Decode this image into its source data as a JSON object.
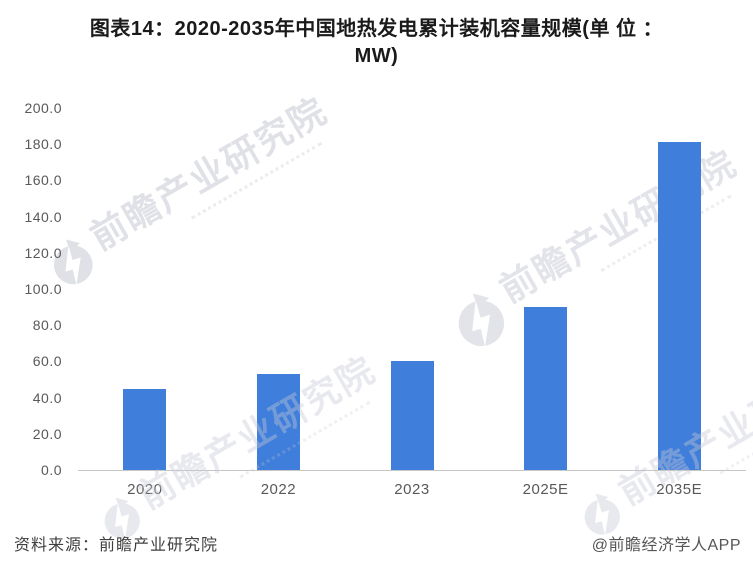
{
  "title": {
    "line1": "图表14：2020-2035年中国地热发电累计装机容量规模(单 位 ：",
    "line2": "MW)"
  },
  "chart_data": {
    "type": "bar",
    "title": "图表14：2020-2035年中国地热发电累计装机容量规模(单位：MW)",
    "categories": [
      "2020",
      "2022",
      "2023",
      "2025E",
      "2035E"
    ],
    "values": [
      45,
      53,
      60,
      90,
      181
    ],
    "unit": "MW",
    "xlabel": "",
    "ylabel": "",
    "ylim": [
      0,
      200
    ],
    "ytick_step": 20,
    "ytick_labels": [
      "200.0",
      "180.0",
      "160.0",
      "140.0",
      "120.0",
      "100.0",
      "80.0",
      "60.0",
      "40.0",
      "20.0",
      "0.0"
    ],
    "bar_color": "#3F7EDB",
    "axis_line_color": "#C6C6C6",
    "grid": false,
    "legend": false
  },
  "footer": {
    "source": "资料来源：前瞻产业研究院",
    "credit": "@前瞻经济学人APP"
  },
  "watermark": {
    "text": "前瞻产业研究院",
    "color": "#C6CAD5"
  }
}
